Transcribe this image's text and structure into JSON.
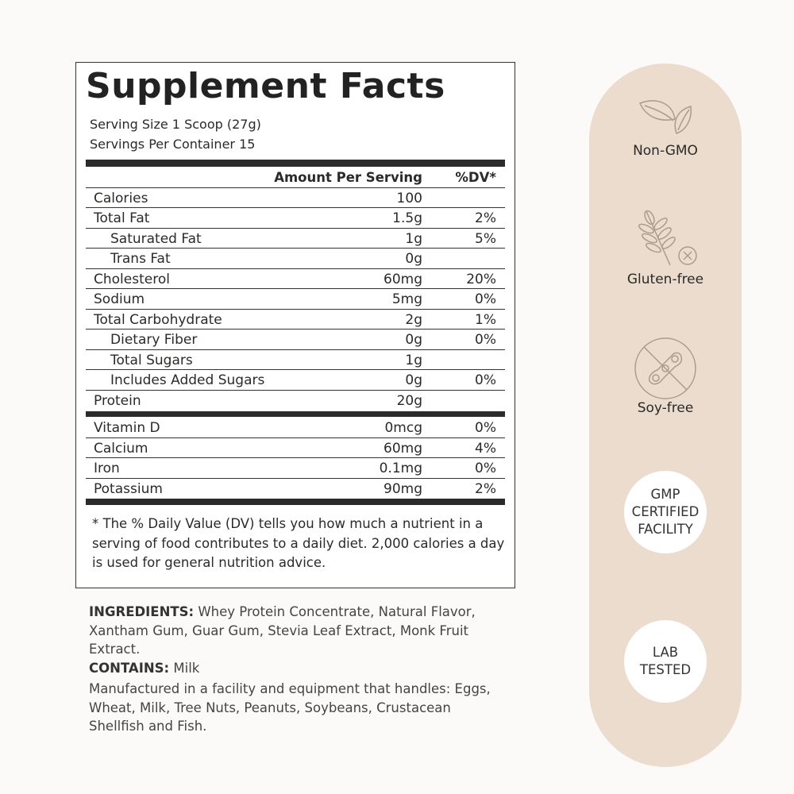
{
  "facts": {
    "title": "Supplement Facts",
    "serving_size": "Serving Size 1 Scoop (27g)",
    "servings_per_container": "Servings Per Container 15",
    "header_amount": "Amount Per Serving",
    "header_dv": "%DV*",
    "rows": [
      {
        "name": "Calories",
        "amount": "100",
        "dv": ""
      },
      {
        "name": "Total Fat",
        "amount": "1.5g",
        "dv": "2%"
      },
      {
        "name": "Saturated Fat",
        "amount": "1g",
        "dv": "5%"
      },
      {
        "name": "Trans Fat",
        "amount": "0g",
        "dv": ""
      },
      {
        "name": "Cholesterol",
        "amount": "60mg",
        "dv": "20%"
      },
      {
        "name": "Sodium",
        "amount": "5mg",
        "dv": "0%"
      },
      {
        "name": "Total Carbohydrate",
        "amount": "2g",
        "dv": "1%"
      },
      {
        "name": "Dietary Fiber",
        "amount": "0g",
        "dv": "0%"
      },
      {
        "name": "Total Sugars",
        "amount": "1g",
        "dv": ""
      },
      {
        "name": "Includes Added Sugars",
        "amount": "0g",
        "dv": "0%"
      },
      {
        "name": "Protein",
        "amount": "20g",
        "dv": ""
      }
    ],
    "vitamins": [
      {
        "name": "Vitamin D",
        "amount": "0mcg",
        "dv": "0%"
      },
      {
        "name": "Calcium",
        "amount": "60mg",
        "dv": "4%"
      },
      {
        "name": "Iron",
        "amount": "0.1mg",
        "dv": "0%"
      },
      {
        "name": "Potassium",
        "amount": "90mg",
        "dv": "2%"
      }
    ],
    "footnote": "* The % Daily Value (DV) tells you how much a nutrient in a serving of food contributes to a daily diet. 2,000 calories a day is used for general nutrition advice."
  },
  "ingredients": {
    "label": "INGREDIENTS:",
    "text": " Whey Protein Concentrate, Natural Flavor, Xantham Gum, Guar Gum, Stevia Leaf Extract, Monk Fruit Extract.",
    "contains_label": "CONTAINS:",
    "contains_text": " Milk",
    "allergen_note": "Manufactured in a facility and equipment that handles: Eggs, Wheat, Milk, Tree Nuts, Peanuts, Soybeans, Crustacean Shellfish and Fish."
  },
  "badges": {
    "non_gmo": "Non-GMO",
    "gluten_free": "Gluten-free",
    "soy_free": "Soy-free",
    "gmp": [
      "GMP",
      "CERTIFIED",
      "FACILITY"
    ],
    "lab": [
      "LAB",
      "TESTED"
    ]
  },
  "colors": {
    "pill": "#ecdccd",
    "icon": "#a99b8e",
    "text": "#2a2a28"
  }
}
